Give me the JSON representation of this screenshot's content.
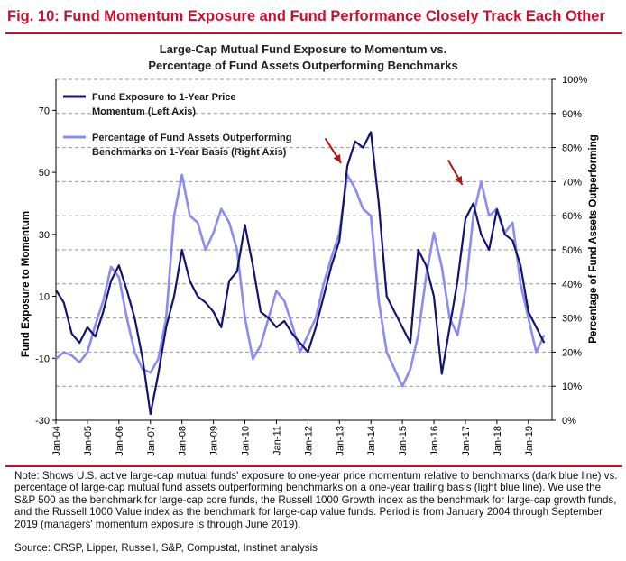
{
  "figure_title": "Fig. 10: Fund Momentum Exposure and Fund Performance Closely Track Each Other",
  "note": "Note: Shows U.S. active large-cap mutual funds' exposure to one-year price momentum relative to benchmarks (dark blue line) vs. percentage of large-cap mutual fund assets outperforming benchmarks on a one-year trailing basis (light blue line). We use the S&P 500 as the benchmark for large-cap core funds, the Russell 1000 Growth index as the benchmark for large-cap growth funds, and the Russell 1000 Value index as the benchmark for large-cap value funds. Period is from January 2004 through September 2019 (managers' momentum exposure is through June 2019).",
  "source": "Source: CRSP, Lipper, Russell, S&P, Compustat, Instinet analysis",
  "colors": {
    "title_red": "#c8102e",
    "dark_blue": "#14146e",
    "light_blue": "#8c8cf0",
    "arrow": "#b01818",
    "grid": "#999999"
  },
  "chart_data": {
    "type": "line",
    "title_line1": "Large-Cap Mutual Fund Exposure to Momentum vs.",
    "title_line2": "Percentage of Fund Assets Outperforming Benchmarks",
    "ylabel_left": "Fund Exposure to Momentum",
    "ylabel_right": "Percentage of Fund Assets Outperforming",
    "ylim_left": [
      -30,
      80
    ],
    "ylim_right": [
      0,
      100
    ],
    "left_ticks": [
      -30,
      -10,
      10,
      30,
      50,
      70
    ],
    "right_ticks": [
      0,
      10,
      20,
      30,
      40,
      50,
      60,
      70,
      80,
      90,
      100
    ],
    "right_tick_labels": [
      "0%",
      "10%",
      "20%",
      "30%",
      "40%",
      "50%",
      "60%",
      "70%",
      "80%",
      "90%",
      "100%"
    ],
    "grid": true,
    "legend_position": "top-left",
    "x_ticks": [
      "Jan-04",
      "Jan-05",
      "Jan-06",
      "Jan-07",
      "Jan-08",
      "Jan-09",
      "Jan-10",
      "Jan-11",
      "Jan-12",
      "Jan-13",
      "Jan-14",
      "Jan-15",
      "Jan-16",
      "Jan-17",
      "Jan-18",
      "Jan-19"
    ],
    "series": [
      {
        "name": "Fund Exposure to 1-Year Price Momentum (Left Axis)",
        "legend_line1": "Fund Exposure to 1-Year Price",
        "legend_line2": "Momentum (Left Axis)",
        "axis": "left",
        "x": [
          2004.0,
          2004.25,
          2004.5,
          2004.75,
          2005.0,
          2005.25,
          2005.5,
          2005.75,
          2006.0,
          2006.25,
          2006.5,
          2006.75,
          2007.0,
          2007.25,
          2007.5,
          2007.75,
          2008.0,
          2008.25,
          2008.5,
          2008.75,
          2009.0,
          2009.25,
          2009.5,
          2009.75,
          2010.0,
          2010.25,
          2010.5,
          2010.75,
          2011.0,
          2011.25,
          2011.5,
          2011.75,
          2012.0,
          2012.25,
          2012.5,
          2012.75,
          2013.0,
          2013.25,
          2013.5,
          2013.75,
          2014.0,
          2014.25,
          2014.5,
          2014.75,
          2015.0,
          2015.25,
          2015.5,
          2015.75,
          2016.0,
          2016.25,
          2016.5,
          2016.75,
          2017.0,
          2017.25,
          2017.5,
          2017.75,
          2018.0,
          2018.25,
          2018.5,
          2018.75,
          2019.0,
          2019.25,
          2019.5
        ],
        "values": [
          12,
          8,
          -2,
          -5,
          0,
          -3,
          5,
          15,
          20,
          12,
          3,
          -10,
          -28,
          -15,
          0,
          10,
          25,
          15,
          10,
          8,
          5,
          0,
          15,
          18,
          33,
          20,
          5,
          3,
          0,
          2,
          -2,
          -5,
          -8,
          0,
          10,
          20,
          28,
          52,
          60,
          58,
          63,
          40,
          10,
          5,
          0,
          -5,
          25,
          20,
          10,
          -15,
          0,
          15,
          35,
          40,
          30,
          25,
          38,
          30,
          28,
          20,
          5,
          0,
          -5
        ]
      },
      {
        "name": "Percentage of Fund Assets Outperforming Benchmarks on 1-Year Basis (Right Axis)",
        "legend_line1": "Percentage of Fund Assets Outperforming",
        "legend_line2": "Benchmarks on 1-Year Basis (Right Axis)",
        "axis": "right",
        "x": [
          2004.0,
          2004.25,
          2004.5,
          2004.75,
          2005.0,
          2005.25,
          2005.5,
          2005.75,
          2006.0,
          2006.25,
          2006.5,
          2006.75,
          2007.0,
          2007.25,
          2007.5,
          2007.75,
          2008.0,
          2008.25,
          2008.5,
          2008.75,
          2009.0,
          2009.25,
          2009.5,
          2009.75,
          2010.0,
          2010.25,
          2010.5,
          2010.75,
          2011.0,
          2011.25,
          2011.5,
          2011.75,
          2012.0,
          2012.25,
          2012.5,
          2012.75,
          2013.0,
          2013.25,
          2013.5,
          2013.75,
          2014.0,
          2014.25,
          2014.5,
          2014.75,
          2015.0,
          2015.25,
          2015.5,
          2015.75,
          2016.0,
          2016.25,
          2016.5,
          2016.75,
          2017.0,
          2017.25,
          2017.5,
          2017.75,
          2018.0,
          2018.25,
          2018.5,
          2018.75,
          2019.0,
          2019.25,
          2019.5
        ],
        "values": [
          18,
          20,
          19,
          17,
          20,
          28,
          35,
          45,
          42,
          30,
          20,
          15,
          14,
          18,
          30,
          60,
          72,
          60,
          58,
          50,
          55,
          62,
          58,
          50,
          30,
          18,
          22,
          30,
          38,
          35,
          28,
          20,
          25,
          30,
          40,
          48,
          55,
          72,
          68,
          62,
          60,
          35,
          20,
          15,
          10,
          15,
          25,
          42,
          55,
          45,
          30,
          25,
          38,
          60,
          70,
          60,
          62,
          55,
          58,
          40,
          30,
          20,
          25
        ]
      }
    ],
    "arrows": [
      {
        "from_x": 2012.55,
        "from_y": 61,
        "to_x": 2013.05,
        "to_y": 53,
        "axis": "left"
      },
      {
        "from_x": 2016.45,
        "from_y": 54,
        "to_x": 2016.9,
        "to_y": 46,
        "axis": "left"
      }
    ]
  }
}
